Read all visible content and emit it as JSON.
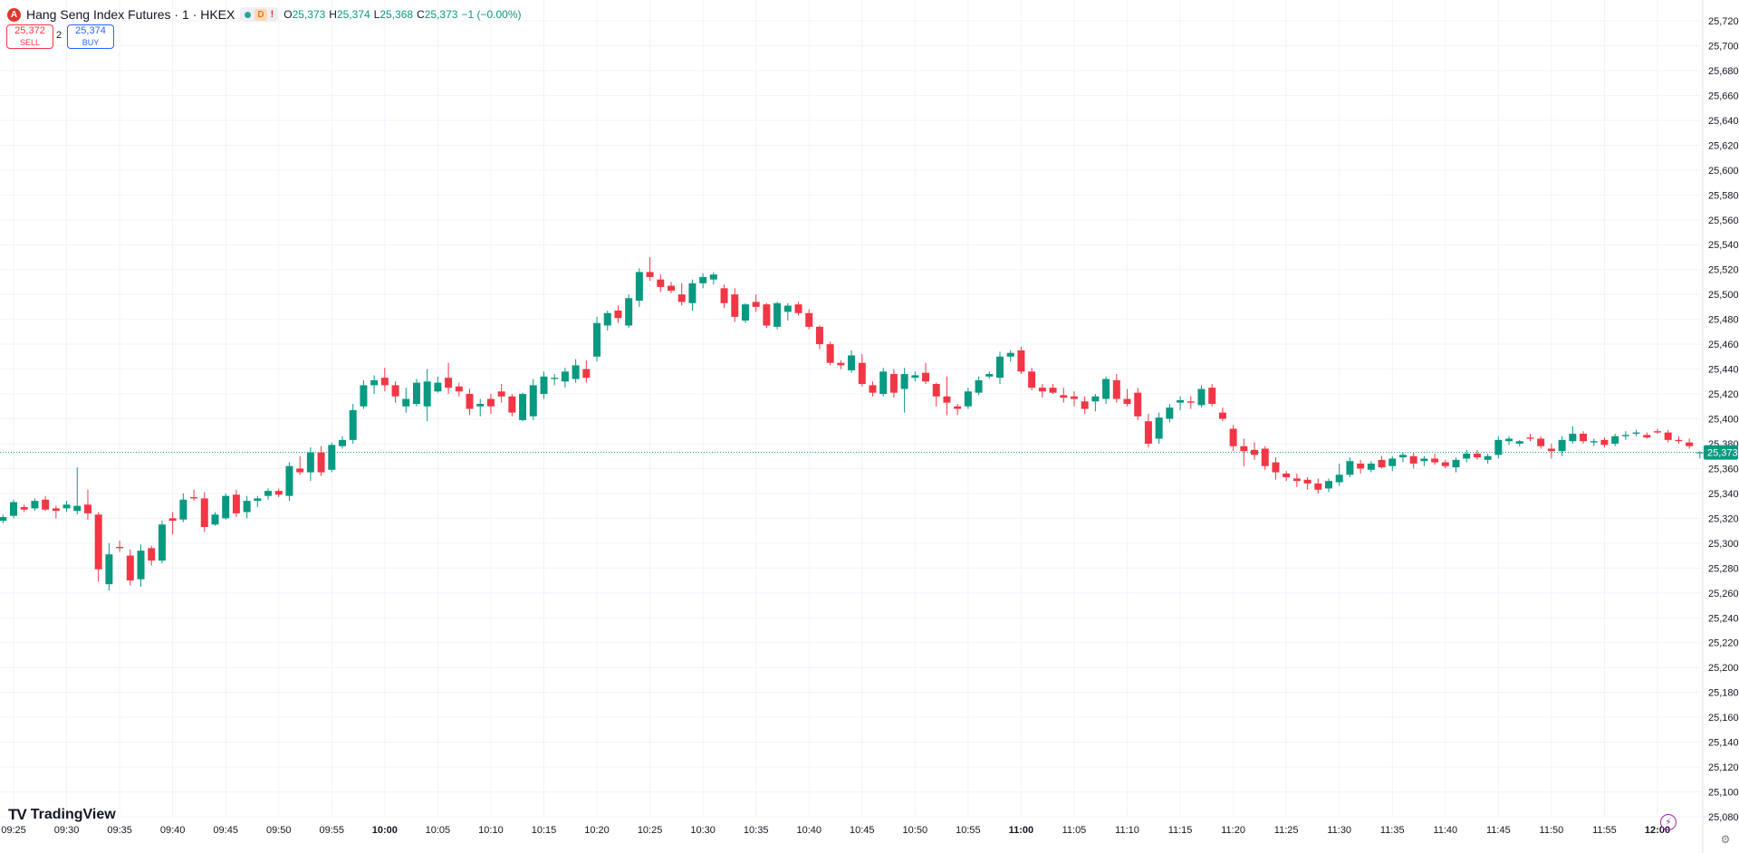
{
  "symbol": {
    "icon_letter": "A",
    "title": "Hang Seng Index Futures · 1 · HKEX",
    "badge_d": "D",
    "badge_warn": "!",
    "ohlc": {
      "o_label": "O",
      "o_value": "25,373",
      "h_label": "H",
      "h_value": "25,374",
      "l_label": "L",
      "l_value": "25,368",
      "c_label": "C",
      "c_value": "25,373",
      "change": "−1 (−0.00%)"
    }
  },
  "trade": {
    "sell_price": "25,372",
    "sell_label": "SELL",
    "spread": "2",
    "buy_price": "25,374",
    "buy_label": "BUY"
  },
  "brand": {
    "logo": "TV",
    "name": "TradingView"
  },
  "colors": {
    "up": "#089981",
    "down": "#f23645",
    "grid": "#f0f3fa",
    "axis_text": "#131722"
  },
  "chart_data": {
    "type": "candlestick",
    "interval_minutes": 1,
    "time_range": [
      "09:24",
      "12:00"
    ],
    "ylim": [
      25080,
      25720
    ],
    "y_ticks": [
      25080,
      25100,
      25120,
      25140,
      25160,
      25180,
      25200,
      25220,
      25240,
      25260,
      25280,
      25300,
      25320,
      25340,
      25360,
      25380,
      25400,
      25420,
      25440,
      25460,
      25480,
      25500,
      25520,
      25540,
      25560,
      25580,
      25600,
      25620,
      25640,
      25660,
      25680,
      25700,
      25720
    ],
    "x_ticks": [
      "09:25",
      "09:30",
      "09:35",
      "09:40",
      "09:45",
      "09:50",
      "09:55",
      "10:00",
      "10:05",
      "10:10",
      "10:15",
      "10:20",
      "10:25",
      "10:30",
      "10:35",
      "10:40",
      "10:45",
      "10:50",
      "10:55",
      "11:00",
      "11:05",
      "11:10",
      "11:15",
      "11:20",
      "11:25",
      "11:30",
      "11:35",
      "11:40",
      "11:45",
      "11:50",
      "11:55",
      "12:00"
    ],
    "bold_ticks": [
      "10:00",
      "11:00",
      "12:00"
    ],
    "grid": true,
    "last_price": 25373,
    "last_price_label": "25,373",
    "candles": [
      [
        25318,
        25323,
        25316,
        25321
      ],
      [
        25322,
        25335,
        25320,
        25333
      ],
      [
        25329,
        25331,
        25325,
        25327
      ],
      [
        25328,
        25336,
        25326,
        25334
      ],
      [
        25335,
        25338,
        25326,
        25327
      ],
      [
        25328,
        25330,
        25320,
        25326
      ],
      [
        25328,
        25334,
        25325,
        25331
      ],
      [
        25326,
        25361,
        25323,
        25330
      ],
      [
        25331,
        25343,
        25319,
        25324
      ],
      [
        25323,
        25325,
        25269,
        25279
      ],
      [
        25267,
        25300,
        25262,
        25291
      ],
      [
        25297,
        25302,
        25293,
        25296
      ],
      [
        25290,
        25295,
        25266,
        25270
      ],
      [
        25271,
        25299,
        25265,
        25294
      ],
      [
        25296,
        25298,
        25282,
        25286
      ],
      [
        25286,
        25318,
        25284,
        25315
      ],
      [
        25320,
        25325,
        25307,
        25318
      ],
      [
        25319,
        25340,
        25317,
        25335
      ],
      [
        25337,
        25343,
        25334,
        25336
      ],
      [
        25336,
        25341,
        25309,
        25313
      ],
      [
        25315,
        25325,
        25314,
        25323
      ],
      [
        25320,
        25340,
        25319,
        25338
      ],
      [
        25339,
        25343,
        25321,
        25324
      ],
      [
        25325,
        25338,
        25320,
        25334
      ],
      [
        25334,
        25338,
        25329,
        25336
      ],
      [
        25338,
        25344,
        25335,
        25342
      ],
      [
        25342,
        25344,
        25337,
        25339
      ],
      [
        25338,
        25365,
        25334,
        25362
      ],
      [
        25360,
        25370,
        25355,
        25357
      ],
      [
        25357,
        25377,
        25350,
        25373
      ],
      [
        25373,
        25378,
        25354,
        25357
      ],
      [
        25359,
        25381,
        25357,
        25379
      ],
      [
        25378,
        25386,
        25376,
        25383
      ],
      [
        25383,
        25412,
        25380,
        25407
      ],
      [
        25410,
        25431,
        25408,
        25427
      ],
      [
        25427,
        25435,
        25420,
        25431
      ],
      [
        25433,
        25441,
        25422,
        25427
      ],
      [
        25427,
        25430,
        25413,
        25418
      ],
      [
        25410,
        25425,
        25405,
        25416
      ],
      [
        25412,
        25432,
        25410,
        25429
      ],
      [
        25410,
        25440,
        25398,
        25430
      ],
      [
        25422,
        25434,
        25421,
        25429
      ],
      [
        25433,
        25445,
        25420,
        25425
      ],
      [
        25426,
        25429,
        25418,
        25422
      ],
      [
        25420,
        25424,
        25403,
        25408
      ],
      [
        25410,
        25416,
        25402,
        25412
      ],
      [
        25416,
        25420,
        25404,
        25410
      ],
      [
        25422,
        25428,
        25413,
        25418
      ],
      [
        25418,
        25420,
        25402,
        25405
      ],
      [
        25399,
        25421,
        25398,
        25420
      ],
      [
        25402,
        25432,
        25399,
        25427
      ],
      [
        25420,
        25438,
        25416,
        25434
      ],
      [
        25432,
        25436,
        25427,
        25433
      ],
      [
        25430,
        25441,
        25425,
        25438
      ],
      [
        25432,
        25448,
        25429,
        25443
      ],
      [
        25440,
        25447,
        25429,
        25433
      ],
      [
        25450,
        25482,
        25446,
        25477
      ],
      [
        25475,
        25487,
        25471,
        25485
      ],
      [
        25487,
        25491,
        25477,
        25481
      ],
      [
        25475,
        25500,
        25473,
        25497
      ],
      [
        25495,
        25521,
        25490,
        25518
      ],
      [
        25518,
        25530,
        25511,
        25514
      ],
      [
        25512,
        25516,
        25502,
        25506
      ],
      [
        25507,
        25510,
        25501,
        25503
      ],
      [
        25500,
        25509,
        25491,
        25494
      ],
      [
        25493,
        25512,
        25487,
        25509
      ],
      [
        25509,
        25517,
        25505,
        25514
      ],
      [
        25512,
        25518,
        25508,
        25516
      ],
      [
        25505,
        25508,
        25489,
        25493
      ],
      [
        25500,
        25505,
        25478,
        25482
      ],
      [
        25479,
        25493,
        25477,
        25492
      ],
      [
        25494,
        25500,
        25486,
        25490
      ],
      [
        25492,
        25493,
        25473,
        25475
      ],
      [
        25474,
        25494,
        25472,
        25493
      ],
      [
        25486,
        25493,
        25479,
        25491
      ],
      [
        25492,
        25494,
        25483,
        25485
      ],
      [
        25485,
        25488,
        25472,
        25474
      ],
      [
        25474,
        25475,
        25456,
        25460
      ],
      [
        25460,
        25462,
        25443,
        25445
      ],
      [
        25445,
        25447,
        25440,
        25443
      ],
      [
        25439,
        25455,
        25437,
        25451
      ],
      [
        25445,
        25452,
        25426,
        25428
      ],
      [
        25427,
        25430,
        25418,
        25421
      ],
      [
        25420,
        25441,
        25418,
        25438
      ],
      [
        25436,
        25440,
        25417,
        25421
      ],
      [
        25424,
        25441,
        25405,
        25436
      ],
      [
        25433,
        25438,
        25430,
        25435
      ],
      [
        25437,
        25445,
        25428,
        25430
      ],
      [
        25428,
        25429,
        25410,
        25418
      ],
      [
        25418,
        25434,
        25403,
        25413
      ],
      [
        25410,
        25412,
        25403,
        25408
      ],
      [
        25410,
        25425,
        25408,
        25422
      ],
      [
        25421,
        25434,
        25419,
        25431
      ],
      [
        25434,
        25438,
        25432,
        25436
      ],
      [
        25433,
        25454,
        25428,
        25450
      ],
      [
        25450,
        25455,
        25446,
        25453
      ],
      [
        25455,
        25458,
        25436,
        25438
      ],
      [
        25438,
        25441,
        25423,
        25425
      ],
      [
        25425,
        25428,
        25417,
        25422
      ],
      [
        25425,
        25428,
        25420,
        25421
      ],
      [
        25419,
        25425,
        25413,
        25417
      ],
      [
        25418,
        25422,
        25410,
        25416
      ],
      [
        25414,
        25418,
        25404,
        25408
      ],
      [
        25414,
        25420,
        25406,
        25418
      ],
      [
        25416,
        25434,
        25412,
        25432
      ],
      [
        25431,
        25436,
        25413,
        25416
      ],
      [
        25416,
        25424,
        25410,
        25412
      ],
      [
        25421,
        25425,
        25399,
        25402
      ],
      [
        25398,
        25404,
        25377,
        25380
      ],
      [
        25384,
        25405,
        25380,
        25401
      ],
      [
        25400,
        25412,
        25397,
        25409
      ],
      [
        25413,
        25418,
        25407,
        25415
      ],
      [
        25414,
        25418,
        25408,
        25413
      ],
      [
        25411,
        25427,
        25409,
        25424
      ],
      [
        25425,
        25428,
        25410,
        25412
      ],
      [
        25405,
        25409,
        25398,
        25400
      ],
      [
        25392,
        25395,
        25374,
        25378
      ],
      [
        25378,
        25384,
        25362,
        25374
      ],
      [
        25375,
        25381,
        25367,
        25371
      ],
      [
        25376,
        25378,
        25359,
        25362
      ],
      [
        25365,
        25369,
        25351,
        25357
      ],
      [
        25356,
        25358,
        25350,
        25353
      ],
      [
        25352,
        25356,
        25345,
        25350
      ],
      [
        25351,
        25353,
        25343,
        25348
      ],
      [
        25348,
        25352,
        25340,
        25343
      ],
      [
        25344,
        25352,
        25341,
        25350
      ],
      [
        25349,
        25364,
        25346,
        25355
      ],
      [
        25355,
        25369,
        25353,
        25366
      ],
      [
        25364,
        25367,
        25356,
        25360
      ],
      [
        25359,
        25366,
        25357,
        25364
      ],
      [
        25367,
        25370,
        25360,
        25361
      ],
      [
        25362,
        25370,
        25358,
        25368
      ],
      [
        25369,
        25373,
        25365,
        25371
      ],
      [
        25370,
        25373,
        25360,
        25364
      ],
      [
        25366,
        25370,
        25362,
        25368
      ],
      [
        25368,
        25372,
        25363,
        25365
      ],
      [
        25365,
        25367,
        25360,
        25362
      ],
      [
        25361,
        25369,
        25357,
        25367
      ],
      [
        25368,
        25375,
        25365,
        25372
      ],
      [
        25372,
        25375,
        25367,
        25369
      ],
      [
        25367,
        25372,
        25364,
        25370
      ],
      [
        25371,
        25386,
        25368,
        25383
      ],
      [
        25382,
        25386,
        25379,
        25384
      ],
      [
        25380,
        25383,
        25378,
        25382
      ],
      [
        25385,
        25388,
        25382,
        25384
      ],
      [
        25384,
        25386,
        25376,
        25378
      ],
      [
        25376,
        25380,
        25368,
        25374
      ],
      [
        25374,
        25386,
        25370,
        25383
      ],
      [
        25382,
        25394,
        25380,
        25388
      ],
      [
        25388,
        25390,
        25380,
        25382
      ],
      [
        25381,
        25384,
        25378,
        25382
      ],
      [
        25383,
        25385,
        25377,
        25379
      ],
      [
        25380,
        25388,
        25378,
        25386
      ],
      [
        25386,
        25390,
        25383,
        25387
      ],
      [
        25388,
        25391,
        25386,
        25389
      ],
      [
        25387,
        25389,
        25384,
        25385
      ],
      [
        25390,
        25392,
        25388,
        25389
      ],
      [
        25389,
        25391,
        25381,
        25383
      ],
      [
        25383,
        25386,
        25380,
        25382
      ],
      [
        25381,
        25384,
        25376,
        25378
      ],
      [
        25373,
        25374,
        25368,
        25373
      ]
    ]
  }
}
